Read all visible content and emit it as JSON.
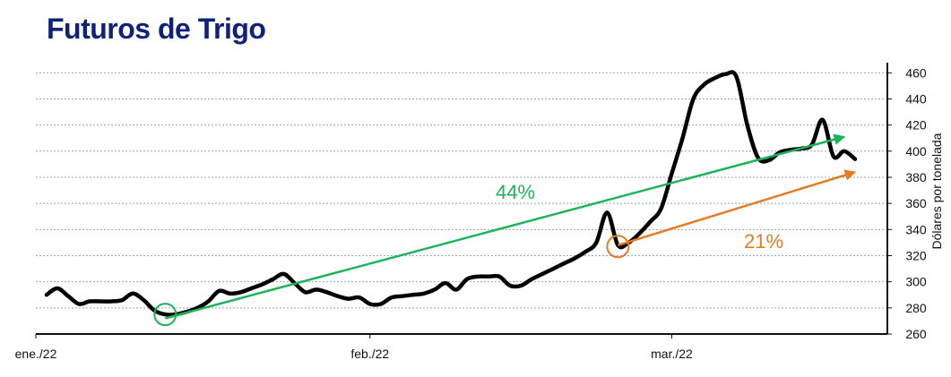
{
  "chart_data": {
    "type": "line",
    "title": "Futuros de Trigo",
    "xlabel": "",
    "ylabel": "Dólares por tonelada",
    "ylim": [
      260,
      465
    ],
    "yticks": [
      260,
      280,
      300,
      320,
      340,
      360,
      380,
      400,
      420,
      440,
      460
    ],
    "x_tick_labels": [
      {
        "label": "ene./22",
        "t": 0
      },
      {
        "label": "feb./22",
        "t": 31
      },
      {
        "label": "mar./22",
        "t": 59
      }
    ],
    "grid": "horizontal dashed",
    "y_axis_side": "right",
    "series": [
      {
        "color": "#000000",
        "points": [
          [
            1,
            290
          ],
          [
            2,
            295
          ],
          [
            3,
            289
          ],
          [
            4,
            283
          ],
          [
            5,
            285
          ],
          [
            6,
            285
          ],
          [
            7,
            285
          ],
          [
            8,
            286
          ],
          [
            9,
            291
          ],
          [
            10,
            286
          ],
          [
            11,
            278
          ],
          [
            12,
            275
          ],
          [
            13,
            275
          ],
          [
            14,
            277
          ],
          [
            15,
            280
          ],
          [
            16,
            285
          ],
          [
            17,
            293
          ],
          [
            18,
            291
          ],
          [
            19,
            292
          ],
          [
            20,
            295
          ],
          [
            21,
            298
          ],
          [
            22,
            302
          ],
          [
            23,
            306
          ],
          [
            24,
            299
          ],
          [
            25,
            292
          ],
          [
            26,
            294
          ],
          [
            27,
            292
          ],
          [
            28,
            289
          ],
          [
            29,
            287
          ],
          [
            30,
            288
          ],
          [
            31,
            283
          ],
          [
            32,
            283
          ],
          [
            33,
            288
          ],
          [
            34,
            289
          ],
          [
            35,
            290
          ],
          [
            36,
            291
          ],
          [
            37,
            294
          ],
          [
            38,
            299
          ],
          [
            39,
            294
          ],
          [
            40,
            302
          ],
          [
            41,
            304
          ],
          [
            42,
            304
          ],
          [
            43,
            304
          ],
          [
            44,
            297
          ],
          [
            45,
            297
          ],
          [
            46,
            302
          ],
          [
            47,
            306
          ],
          [
            48,
            310
          ],
          [
            49,
            314
          ],
          [
            50,
            318
          ],
          [
            51,
            323
          ],
          [
            52,
            330
          ],
          [
            53,
            353
          ],
          [
            54,
            328
          ],
          [
            55,
            330
          ],
          [
            56,
            337
          ],
          [
            57,
            346
          ],
          [
            58,
            356
          ],
          [
            59,
            383
          ],
          [
            60,
            410
          ],
          [
            61,
            440
          ],
          [
            62,
            451
          ],
          [
            63,
            456
          ],
          [
            64,
            459
          ],
          [
            65,
            457
          ],
          [
            66,
            420
          ],
          [
            67,
            395
          ],
          [
            68,
            393
          ],
          [
            69,
            399
          ],
          [
            70,
            401
          ],
          [
            71,
            402
          ],
          [
            72,
            405
          ],
          [
            73,
            424
          ],
          [
            74,
            396
          ],
          [
            75,
            400
          ],
          [
            76,
            394
          ]
        ]
      }
    ],
    "annotations": [
      {
        "text": "44%",
        "color": "#1db35a",
        "from": [
          12,
          272
        ],
        "to": [
          75,
          411
        ],
        "circle_at": [
          12,
          275
        ]
      },
      {
        "text": "21%",
        "color": "#e87b20",
        "from": [
          54,
          328
        ],
        "to": [
          76,
          384
        ],
        "circle_at": [
          54,
          327
        ]
      }
    ]
  }
}
